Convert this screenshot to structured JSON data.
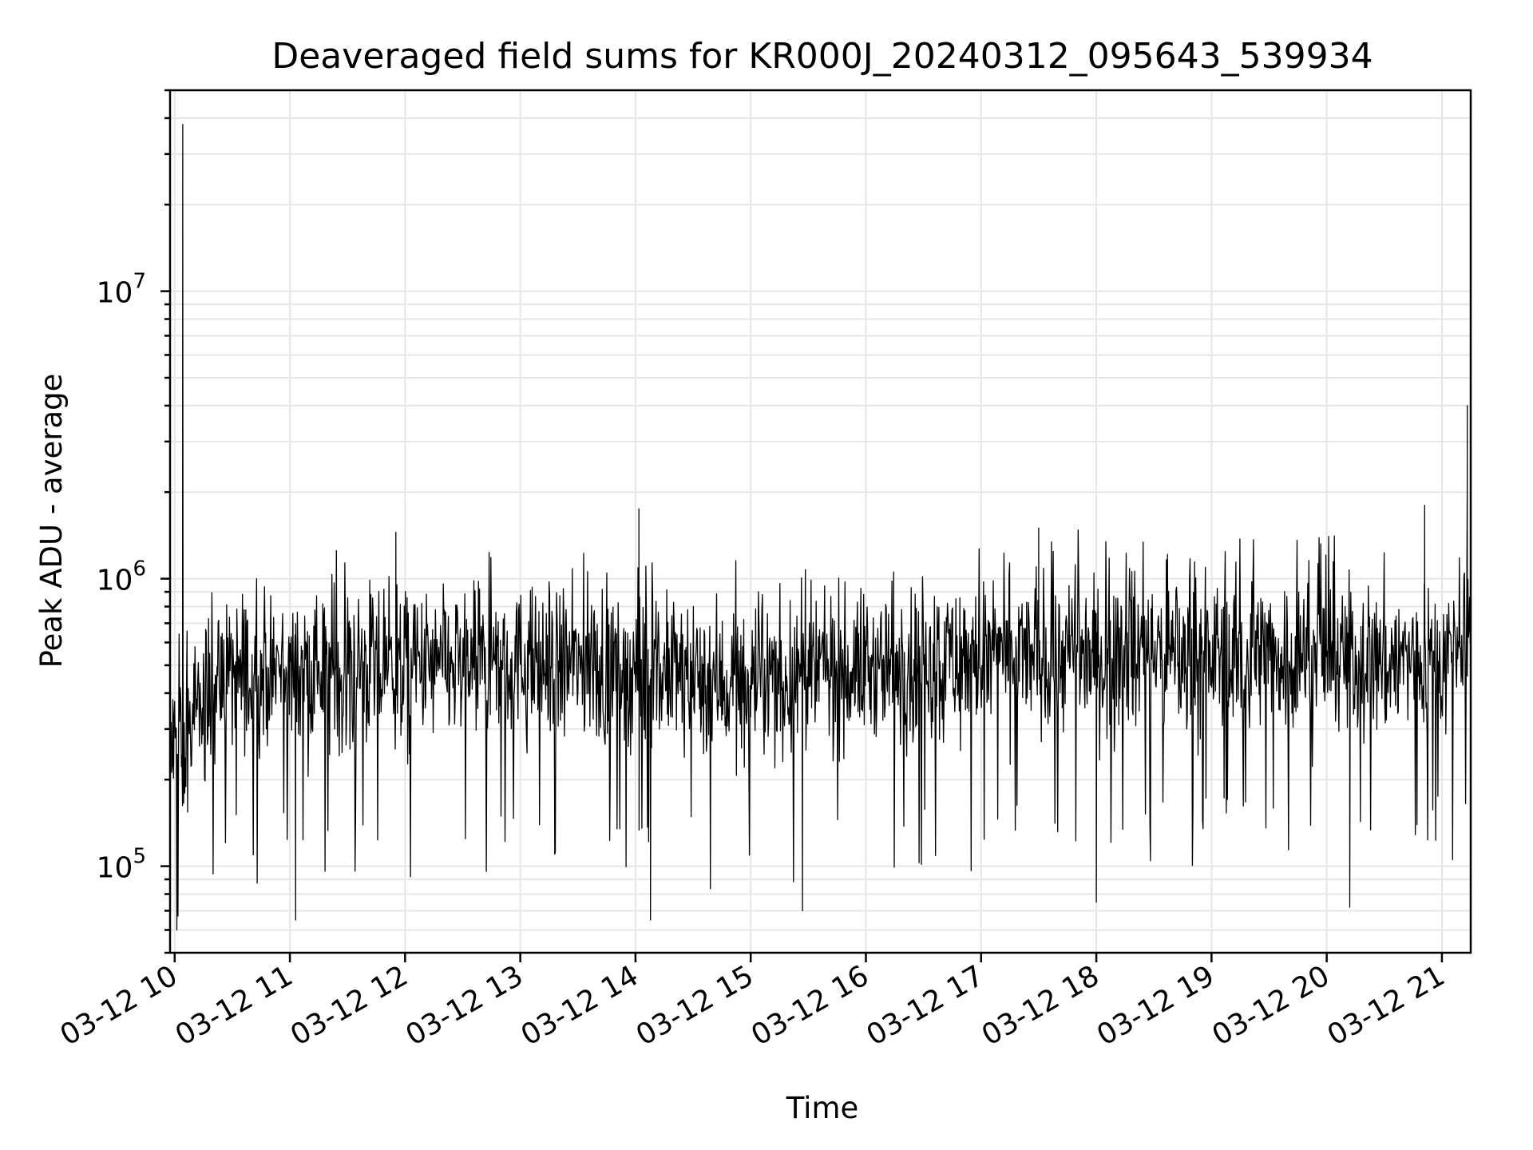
{
  "chart_data": {
    "type": "line",
    "title": "Deaveraged field sums for KR000J_20240312_095643_539934",
    "xlabel": "Time",
    "ylabel": "Peak ADU - average",
    "yscale": "log",
    "ylim": [
      50000,
      50000000
    ],
    "xlim_hours": [
      9.96,
      21.25
    ],
    "x_ticks": [
      {
        "hour": 10,
        "label": "03-12 10"
      },
      {
        "hour": 11,
        "label": "03-12 11"
      },
      {
        "hour": 12,
        "label": "03-12 12"
      },
      {
        "hour": 13,
        "label": "03-12 13"
      },
      {
        "hour": 14,
        "label": "03-12 14"
      },
      {
        "hour": 15,
        "label": "03-12 15"
      },
      {
        "hour": 16,
        "label": "03-12 16"
      },
      {
        "hour": 17,
        "label": "03-12 17"
      },
      {
        "hour": 18,
        "label": "03-12 18"
      },
      {
        "hour": 19,
        "label": "03-12 19"
      },
      {
        "hour": 20,
        "label": "03-12 20"
      },
      {
        "hour": 21,
        "label": "03-12 21"
      }
    ],
    "y_ticks": [
      {
        "value": 100000,
        "base": "10",
        "exp": "5"
      },
      {
        "value": 1000000,
        "base": "10",
        "exp": "6"
      },
      {
        "value": 10000000,
        "base": "10",
        "exp": "7"
      }
    ],
    "grid": true,
    "series": [
      {
        "name": "field sums",
        "color": "#000000",
        "baseline": [
          [
            9.96,
            250000
          ],
          [
            10.1,
            260000
          ],
          [
            10.3,
            420000
          ],
          [
            10.6,
            480000
          ],
          [
            11.5,
            480000
          ],
          [
            12.5,
            490000
          ],
          [
            13.5,
            500000
          ],
          [
            14.5,
            460000
          ],
          [
            15.0,
            420000
          ],
          [
            15.6,
            470000
          ],
          [
            16.5,
            520000
          ],
          [
            17.5,
            540000
          ],
          [
            18.5,
            550000
          ],
          [
            19.5,
            540000
          ],
          [
            20.5,
            520000
          ],
          [
            21.25,
            560000
          ]
        ],
        "spikes": [
          {
            "hour": 10.07,
            "value": 38000000
          },
          {
            "hour": 21.22,
            "value": 4000000
          },
          {
            "hour": 14.03,
            "value": 1750000
          },
          {
            "hour": 20.85,
            "value": 1800000
          },
          {
            "hour": 17.5,
            "value": 1500000
          },
          {
            "hour": 11.92,
            "value": 1450000
          }
        ],
        "dips": [
          {
            "hour": 11.05,
            "value": 65000
          },
          {
            "hour": 14.13,
            "value": 65000
          },
          {
            "hour": 15.45,
            "value": 70000
          },
          {
            "hour": 20.2,
            "value": 72000
          },
          {
            "hour": 18.0,
            "value": 75000
          }
        ]
      }
    ]
  }
}
